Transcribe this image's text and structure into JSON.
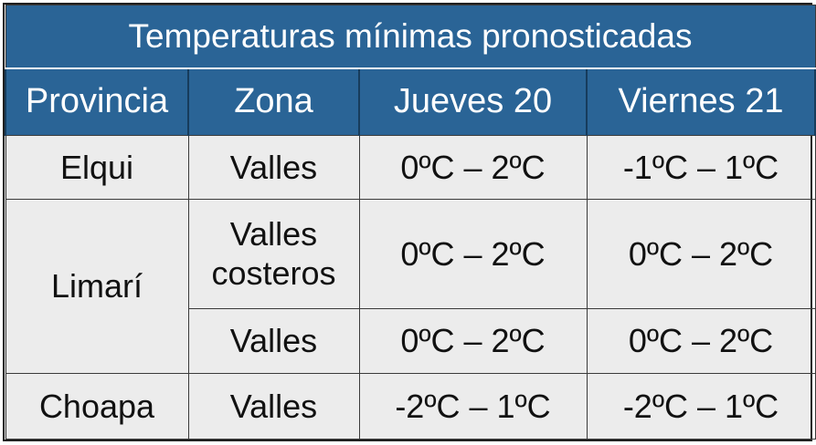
{
  "table": {
    "title": "Temperaturas mínimas pronosticadas",
    "headers": {
      "provincia": "Provincia",
      "zona": "Zona",
      "dia1": "Jueves 20",
      "dia2": "Viernes 21"
    },
    "rows": [
      {
        "provincia": "Elqui",
        "zona": "Valles",
        "dia1": "0ºC – 2ºC",
        "dia2": "-1ºC – 1ºC"
      },
      {
        "provincia": "Limarí",
        "zona_line1": "Valles",
        "zona_line2": "costeros",
        "dia1": "0ºC – 2ºC",
        "dia2": "0ºC – 2ºC"
      },
      {
        "zona": "Valles",
        "dia1": "0ºC – 2ºC",
        "dia2": "0ºC – 2ºC"
      },
      {
        "provincia": "Choapa",
        "zona": "Valles",
        "dia1": "-2ºC – 1ºC",
        "dia2": "-2ºC – 1ºC"
      }
    ],
    "colors": {
      "header_bg": "#2a6496",
      "header_text": "#ffffff",
      "cell_bg": "#ececec",
      "border": "#3a3a3a"
    }
  }
}
